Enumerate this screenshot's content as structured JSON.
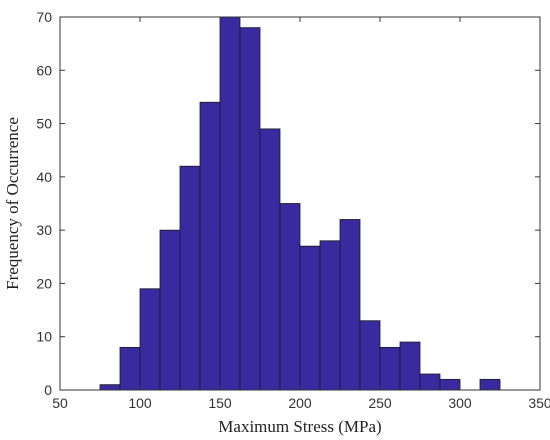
{
  "chart_data": {
    "type": "bar",
    "title": "",
    "xlabel": "Maximum Stress (MPa)",
    "ylabel": "Frequency of Occurrence",
    "xlim": [
      50,
      350
    ],
    "ylim": [
      0,
      70
    ],
    "xticks": [
      50,
      100,
      150,
      200,
      250,
      300,
      350
    ],
    "yticks": [
      0,
      10,
      20,
      30,
      40,
      50,
      60,
      70
    ],
    "bin_width": 12.5,
    "bins": [
      {
        "start": 75,
        "end": 87.5,
        "value": 1
      },
      {
        "start": 87.5,
        "end": 100,
        "value": 8
      },
      {
        "start": 100,
        "end": 112.5,
        "value": 19
      },
      {
        "start": 112.5,
        "end": 125,
        "value": 30
      },
      {
        "start": 125,
        "end": 137.5,
        "value": 42
      },
      {
        "start": 137.5,
        "end": 150,
        "value": 54
      },
      {
        "start": 150,
        "end": 162.5,
        "value": 70
      },
      {
        "start": 162.5,
        "end": 175,
        "value": 68
      },
      {
        "start": 175,
        "end": 187.5,
        "value": 49
      },
      {
        "start": 187.5,
        "end": 200,
        "value": 35
      },
      {
        "start": 200,
        "end": 212.5,
        "value": 27
      },
      {
        "start": 212.5,
        "end": 225,
        "value": 28
      },
      {
        "start": 225,
        "end": 237.5,
        "value": 32
      },
      {
        "start": 237.5,
        "end": 250,
        "value": 13
      },
      {
        "start": 250,
        "end": 262.5,
        "value": 8
      },
      {
        "start": 262.5,
        "end": 275,
        "value": 9
      },
      {
        "start": 275,
        "end": 287.5,
        "value": 3
      },
      {
        "start": 287.5,
        "end": 300,
        "value": 2
      },
      {
        "start": 300,
        "end": 312.5,
        "value": 0
      },
      {
        "start": 312.5,
        "end": 325,
        "value": 2
      }
    ],
    "bar_color": "#3a2aa0",
    "bar_edge_color": "#1a1a1a",
    "grid": false,
    "box": true
  }
}
